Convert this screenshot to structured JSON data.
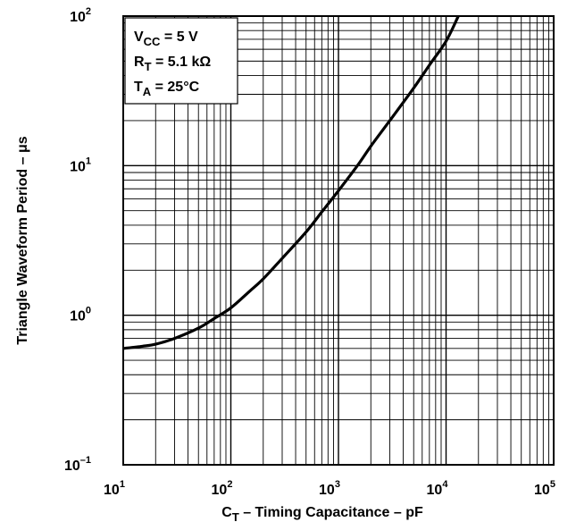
{
  "chart_data": {
    "type": "line",
    "title": "",
    "xlabel": {
      "main": "C",
      "sub": "T",
      "rest": " – Timing Capacitance – pF"
    },
    "ylabel": "Triangle Waveform Period – μs",
    "xscale": "log",
    "yscale": "log",
    "xlim": [
      10,
      100000
    ],
    "ylim": [
      0.1,
      100
    ],
    "grid": true,
    "x_ticks": [
      {
        "base": "10",
        "exp": "1"
      },
      {
        "base": "10",
        "exp": "2"
      },
      {
        "base": "10",
        "exp": "3"
      },
      {
        "base": "10",
        "exp": "4"
      },
      {
        "base": "10",
        "exp": "5"
      }
    ],
    "y_ticks": [
      {
        "base": "10",
        "exp": "2"
      },
      {
        "base": "10",
        "exp": "1"
      },
      {
        "base": "10",
        "exp": "0"
      },
      {
        "base": "10",
        "exp": "–1"
      }
    ],
    "annotations": [
      {
        "main": "V",
        "sub": "CC",
        "rest": " = 5 V"
      },
      {
        "main": "R",
        "sub": "T",
        "rest": " = 5.1 kΩ"
      },
      {
        "main": "T",
        "sub": "A",
        "rest": " = 25°C"
      }
    ],
    "series": [
      {
        "x": [
          10,
          15,
          20,
          30,
          50,
          70,
          100,
          150,
          200,
          300,
          500,
          700,
          1000,
          1500,
          2000,
          3000,
          5000,
          7000,
          10000,
          13000
        ],
        "y": [
          0.6,
          0.62,
          0.64,
          0.7,
          0.82,
          0.95,
          1.12,
          1.45,
          1.75,
          2.4,
          3.6,
          4.9,
          6.8,
          10,
          13.5,
          20,
          33,
          47,
          68,
          100
        ]
      }
    ]
  }
}
